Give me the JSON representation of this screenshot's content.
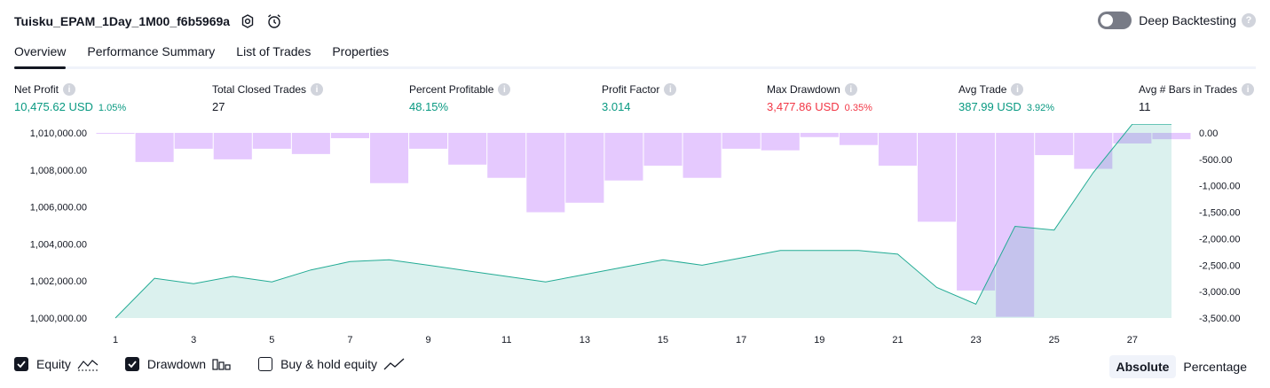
{
  "header": {
    "title": "Tuisku_EPAM_1Day_1M00_f6b5969a",
    "deep_backtesting_label": "Deep Backtesting"
  },
  "tabs": [
    {
      "label": "Overview",
      "active": true
    },
    {
      "label": "Performance Summary",
      "active": false
    },
    {
      "label": "List of Trades",
      "active": false
    },
    {
      "label": "Properties",
      "active": false
    }
  ],
  "metrics": {
    "net_profit": {
      "label": "Net Profit",
      "value": "10,475.62 USD",
      "pct": "1.05%"
    },
    "total_closed_trades": {
      "label": "Total Closed Trades",
      "value": "27"
    },
    "percent_profitable": {
      "label": "Percent Profitable",
      "value": "48.15%"
    },
    "profit_factor": {
      "label": "Profit Factor",
      "value": "3.014"
    },
    "max_drawdown": {
      "label": "Max Drawdown",
      "value": "3,477.86 USD",
      "pct": "0.35%"
    },
    "avg_trade": {
      "label": "Avg Trade",
      "value": "387.99 USD",
      "pct": "3.92%"
    },
    "avg_bars": {
      "label": "Avg # Bars in Trades",
      "value": "11"
    }
  },
  "chart_data": {
    "type": "bar+area",
    "left_axis_ticks": [
      "1,000,000.00",
      "1,002,000.00",
      "1,004,000.00",
      "1,006,000.00",
      "1,008,000.00",
      "1,010,000.00"
    ],
    "left_axis_values": [
      1000000,
      1002000,
      1004000,
      1006000,
      1008000,
      1010000
    ],
    "right_axis_ticks": [
      "0.00",
      "-500.00",
      "-1,000.00",
      "-1,500.00",
      "-2,000.00",
      "-2,500.00",
      "-3,000.00",
      "-3,500.00"
    ],
    "right_axis_values": [
      0,
      -500,
      -1000,
      -1500,
      -2000,
      -2500,
      -3000,
      -3500
    ],
    "x_ticks": [
      "1",
      "3",
      "5",
      "7",
      "9",
      "11",
      "13",
      "15",
      "17",
      "19",
      "21",
      "23",
      "25",
      "27"
    ],
    "x_tick_values": [
      1,
      3,
      5,
      7,
      9,
      11,
      13,
      15,
      17,
      19,
      21,
      23,
      25,
      27
    ],
    "ylim_equity": [
      1000000,
      1010000
    ],
    "ylim_drawdown": [
      -3500,
      0
    ],
    "equity": {
      "name": "Equity",
      "x": [
        1,
        2,
        3,
        4,
        5,
        6,
        7,
        8,
        9,
        10,
        11,
        12,
        13,
        14,
        15,
        16,
        17,
        18,
        19,
        20,
        21,
        22,
        23,
        24,
        25,
        26,
        27,
        28
      ],
      "values": [
        1000000,
        1002150,
        1001850,
        1002250,
        1001950,
        1002600,
        1003050,
        1003150,
        1002850,
        1002550,
        1002250,
        1001950,
        1002350,
        1002750,
        1003150,
        1002850,
        1003250,
        1003650,
        1003650,
        1003650,
        1003450,
        1001650,
        1000750,
        1004950,
        1004750,
        1007850,
        1010475,
        1010475
      ]
    },
    "drawdown": {
      "name": "Drawdown",
      "x": [
        1,
        2,
        3,
        4,
        5,
        6,
        7,
        8,
        9,
        10,
        11,
        12,
        13,
        14,
        15,
        16,
        17,
        18,
        19,
        20,
        21,
        22,
        23,
        24,
        25,
        26,
        27,
        28
      ],
      "values": [
        0,
        -550,
        -300,
        -500,
        -300,
        -400,
        -100,
        -950,
        -300,
        -600,
        -850,
        -1500,
        -1320,
        -900,
        -620,
        -850,
        -300,
        -330,
        -80,
        -230,
        -620,
        -1680,
        -2980,
        -3478,
        -420,
        -680,
        -200,
        -120
      ]
    },
    "legend": [
      {
        "name": "Equity",
        "checked": true
      },
      {
        "name": "Drawdown",
        "checked": true
      },
      {
        "name": "Buy & hold equity",
        "checked": false
      }
    ],
    "colors": {
      "equity_line": "#22ab94",
      "equity_fill": "#22ab94",
      "drawdown_bar": "#e1bffe",
      "axis_text": "#131722"
    }
  },
  "modes": {
    "absolute": "Absolute",
    "percentage": "Percentage"
  }
}
